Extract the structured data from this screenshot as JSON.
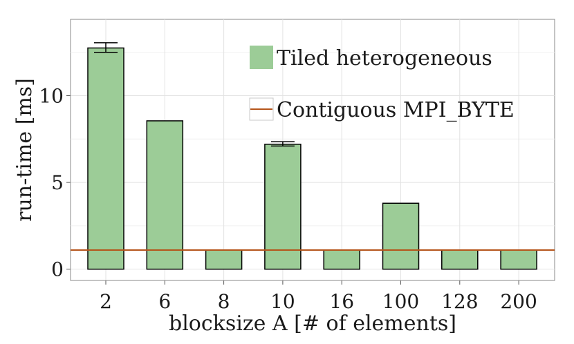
{
  "chart_data": {
    "type": "bar",
    "title": "",
    "xlabel": "blocksize A [# of elements]",
    "ylabel": "run-time [ms]",
    "categories": [
      "2",
      "6",
      "8",
      "10",
      "16",
      "100",
      "128",
      "200"
    ],
    "series": [
      {
        "name": "Tiled heterogeneous",
        "type": "bar",
        "values": [
          12.75,
          8.55,
          1.1,
          7.2,
          1.1,
          3.8,
          1.1,
          1.1
        ],
        "error": [
          [
            12.5,
            13.05
          ],
          null,
          null,
          [
            7.1,
            7.35
          ],
          null,
          null,
          null,
          null
        ],
        "color": "#9ccc97"
      },
      {
        "name": "Contiguous MPI_BYTE",
        "type": "hline",
        "value": 1.1,
        "color": "#b5541a"
      }
    ],
    "ylim": [
      -0.65,
      14.4
    ],
    "yticks": [
      0,
      5,
      10
    ],
    "grid": true,
    "legend_position": "top-right"
  }
}
